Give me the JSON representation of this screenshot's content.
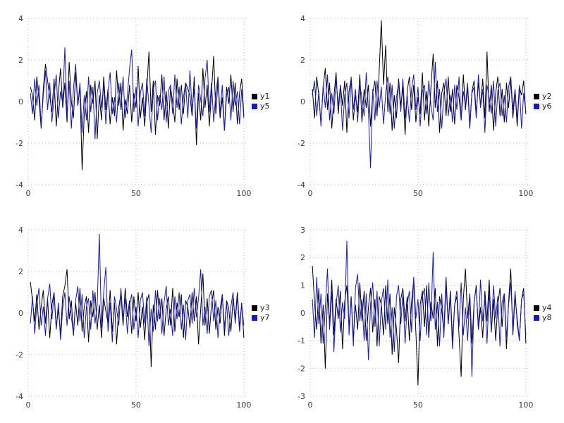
{
  "page": {
    "background": "#ffffff",
    "grid_color": "#c4c4c4",
    "tick_label_color": "#3a3a3a"
  },
  "chart_data": [
    {
      "type": "line",
      "title": "",
      "xlabel": "",
      "ylabel": "",
      "xlim": [
        0,
        102
      ],
      "ylim": [
        -4,
        4
      ],
      "xticks": [
        0,
        50,
        100
      ],
      "yticks": [
        -4,
        -2,
        0,
        2,
        4
      ],
      "grid": true,
      "legend_position": "right-center",
      "series": [
        {
          "name": "y1",
          "color": "#000000",
          "values": [
            0.7,
            0.3,
            -0.9,
            1.2,
            0.1,
            -1.3,
            0.6,
            1.8,
            1.0,
            0.2,
            -0.5,
            1.1,
            -1.2,
            0.4,
            1.6,
            -0.3,
            0.9,
            -1.0,
            1.9,
            0.0,
            -0.8,
            1.4,
            -0.2,
            0.7,
            -3.3,
            -0.6,
            0.5,
            -1.5,
            0.8,
            -0.1,
            1.0,
            -1.8,
            0.3,
            -0.9,
            1.2,
            -0.4,
            0.6,
            -1.1,
            0.2,
            -0.7,
            1.5,
            -0.2,
            0.9,
            -1.4,
            0.1,
            -0.6,
            0.8,
            -1.0,
            0.4,
            -0.3,
            1.7,
            -0.8,
            0.2,
            -1.2,
            0.6,
            2.4,
            -0.5,
            1.0,
            -1.6,
            0.3,
            -0.2,
            1.3,
            -0.9,
            0.5,
            -1.3,
            0.7,
            0.0,
            -1.0,
            1.1,
            -0.4,
            0.8,
            -0.6,
            0.9,
            0.6,
            0.3,
            -0.7,
            1.2,
            -2.1,
            0.4,
            -0.9,
            1.6,
            -0.3,
            0.8,
            -1.2,
            0.5,
            2.2,
            -0.6,
            1.0,
            -0.8,
            0.2,
            -1.4,
            0.7,
            -0.1,
            1.3,
            -0.5,
            0.9,
            -1.1,
            0.4,
            1.1,
            -0.7
          ]
        },
        {
          "name": "y5",
          "color": "#1515d6",
          "values": [
            0.4,
            -0.6,
            1.1,
            -0.2,
            0.8,
            -1.2,
            0.3,
            1.5,
            -0.4,
            0.9,
            -1.0,
            0.2,
            1.3,
            -0.8,
            0.5,
            -0.1,
            2.6,
            -0.7,
            1.0,
            -1.3,
            0.6,
            1.8,
            -0.2,
            0.9,
            -1.5,
            0.3,
            -0.9,
            1.2,
            -0.5,
            0.7,
            -1.8,
            0.4,
            1.0,
            -0.3,
            0.8,
            -1.1,
            0.5,
            1.4,
            -0.6,
            0.2,
            -1.0,
            0.9,
            -0.4,
            1.2,
            -0.8,
            0.3,
            1.6,
            2.5,
            -0.5,
            0.7,
            -1.2,
            0.4,
            0.9,
            -0.7,
            1.1,
            -0.2,
            -1.5,
            0.6,
            1.0,
            -0.9,
            0.3,
            -0.4,
            1.2,
            -1.0,
            0.5,
            0.8,
            -0.6,
            1.3,
            -0.3,
            0.7,
            -1.1,
            0.2,
            0.9,
            -0.8,
            1.5,
            -0.4,
            0.6,
            -1.3,
            0.8,
            0.1,
            -0.7,
            1.1,
            2.0,
            -0.5,
            0.9,
            -1.0,
            0.4,
            1.2,
            -0.6,
            0.8,
            -1.4,
            0.3,
            0.7,
            -0.9,
            1.0,
            -0.2,
            0.5,
            -1.1,
            0.6,
            -0.8
          ]
        }
      ]
    },
    {
      "type": "line",
      "title": "",
      "xlabel": "",
      "ylabel": "",
      "xlim": [
        0,
        102
      ],
      "ylim": [
        -4,
        4
      ],
      "xticks": [
        0,
        50,
        100
      ],
      "yticks": [
        -4,
        -2,
        0,
        2,
        4
      ],
      "grid": true,
      "legend_position": "right-center",
      "series": [
        {
          "name": "y2",
          "color": "#000000",
          "values": [
            0.6,
            -0.8,
            1.2,
            0.3,
            -1.1,
            0.7,
            1.6,
            -0.4,
            0.9,
            -1.3,
            0.2,
            1.4,
            -0.6,
            0.8,
            -0.2,
            1.0,
            -1.5,
            0.5,
            1.1,
            -0.9,
            0.3,
            -0.5,
            1.3,
            -1.0,
            0.6,
            -0.3,
            0.8,
            -1.2,
            0.4,
            1.0,
            -0.7,
            1.5,
            3.9,
            0.8,
            2.7,
            -0.5,
            0.9,
            -1.4,
            0.3,
            -0.8,
            1.1,
            -0.2,
            0.7,
            -1.6,
            0.5,
            1.2,
            -0.4,
            0.8,
            -1.0,
            0.2,
            -0.6,
            1.4,
            -0.9,
            0.5,
            -1.2,
            0.7,
            2.3,
            -0.3,
            1.0,
            -1.5,
            0.4,
            0.9,
            -0.7,
            1.2,
            -0.5,
            0.6,
            -1.1,
            0.8,
            0.2,
            -0.9,
            1.3,
            -0.4,
            0.7,
            -1.3,
            0.5,
            1.0,
            -0.6,
            0.9,
            -0.2,
            1.1,
            -0.8,
            2.4,
            -0.5,
            0.8,
            -1.4,
            0.4,
            1.2,
            -0.7,
            0.6,
            -1.0,
            0.9,
            -0.3,
            1.1,
            -0.8,
            0.5,
            -1.2,
            0.7,
            0.3,
            1.0,
            -0.6
          ]
        },
        {
          "name": "y6",
          "color": "#1515d6",
          "values": [
            0.3,
            1.0,
            -0.7,
            0.5,
            -1.2,
            0.8,
            -0.3,
            1.3,
            -0.9,
            0.4,
            -0.6,
            1.1,
            -0.2,
            0.7,
            -1.4,
            0.3,
            0.9,
            -0.8,
            1.2,
            -0.4,
            0.6,
            -1.0,
            0.8,
            0.2,
            -0.7,
            1.4,
            -0.5,
            -3.2,
            0.6,
            -0.9,
            1.0,
            -0.3,
            0.7,
            -1.1,
            0.4,
            1.2,
            -0.6,
            0.8,
            -1.3,
            0.2,
            0.9,
            -0.5,
            1.1,
            -0.8,
            0.3,
            -1.0,
            0.6,
            1.3,
            -0.4,
            0.7,
            -1.2,
            0.5,
            0.8,
            -0.6,
            1.0,
            -0.2,
            -0.9,
            1.9,
            -0.5,
            0.6,
            -1.3,
            0.4,
            1.1,
            -0.7,
            0.3,
            -1.0,
            0.8,
            -0.4,
            1.2,
            -0.9,
            0.5,
            -0.2,
            0.9,
            -1.1,
            0.4,
            0.7,
            -0.8,
            1.3,
            -0.3,
            0.6,
            -1.5,
            0.8,
            0.2,
            -0.6,
            1.0,
            -1.2,
            0.5,
            0.9,
            -0.7,
            0.3,
            -1.0,
            0.7,
            1.2,
            -0.4,
            0.6,
            -0.9,
            0.8,
            -1.3,
            0.4,
            -0.5
          ]
        }
      ]
    },
    {
      "type": "line",
      "title": "",
      "xlabel": "",
      "ylabel": "",
      "xlim": [
        0,
        102
      ],
      "ylim": [
        -4,
        4
      ],
      "xticks": [
        0,
        50,
        100
      ],
      "yticks": [
        -4,
        -2,
        0,
        2,
        4
      ],
      "grid": true,
      "legend_position": "right-center",
      "series": [
        {
          "name": "y3",
          "color": "#000000",
          "values": [
            1.5,
            0.6,
            -0.4,
            0.9,
            -0.8,
            0.3,
            1.1,
            -0.5,
            0.7,
            -1.2,
            0.4,
            1.0,
            -0.7,
            0.2,
            -1.0,
            0.8,
            1.3,
            2.1,
            -0.3,
            0.6,
            -1.1,
            0.5,
            -0.6,
            1.2,
            -0.9,
            0.3,
            0.8,
            -1.4,
            0.6,
            -0.2,
            1.0,
            -0.8,
            0.4,
            -1.2,
            0.7,
            0.1,
            -0.5,
            1.1,
            -0.9,
            0.5,
            -1.5,
            0.3,
            0.9,
            -0.6,
            1.2,
            -0.2,
            0.6,
            -1.0,
            0.8,
            -0.4,
            1.0,
            -0.7,
            0.3,
            -1.3,
            0.5,
            0.9,
            -2.6,
            0.4,
            -0.8,
            1.1,
            -0.3,
            0.7,
            -1.1,
            0.2,
            0.8,
            -0.6,
            1.2,
            -0.9,
            0.5,
            -0.2,
            0.9,
            -1.2,
            0.6,
            0.3,
            -0.7,
            1.0,
            -0.4,
            0.8,
            -1.5,
            0.2,
            1.9,
            -0.6,
            0.7,
            -1.0,
            0.4,
            1.1,
            -0.8,
            0.3,
            -0.5,
            0.9,
            -1.1,
            0.6,
            0.2,
            -0.9,
            0.7,
            -0.3,
            1.0,
            -0.7,
            0.5,
            -1.2
          ]
        },
        {
          "name": "y7",
          "color": "#1515d6",
          "values": [
            -0.5,
            0.8,
            -1.0,
            0.4,
            1.2,
            -0.6,
            0.3,
            -1.1,
            0.7,
            1.4,
            -0.3,
            0.9,
            -0.8,
            0.5,
            -1.3,
            0.2,
            1.0,
            -0.6,
            0.8,
            -0.2,
            -1.0,
            0.6,
            1.3,
            -0.4,
            0.9,
            -1.2,
            0.3,
            0.7,
            -0.8,
            1.1,
            -0.5,
            0.4,
            3.8,
            -0.7,
            1.0,
            2.2,
            -0.9,
            0.5,
            -1.4,
            0.8,
            0.2,
            -0.6,
            1.2,
            -0.3,
            0.7,
            -1.0,
            0.4,
            0.9,
            -0.8,
            0.3,
            -1.2,
            0.6,
            1.0,
            -0.5,
            0.8,
            -1.6,
            0.2,
            -0.9,
            1.1,
            -0.4,
            0.7,
            -1.0,
            0.5,
            1.3,
            -0.6,
            0.2,
            -1.1,
            0.8,
            -0.3,
            1.0,
            -0.8,
            0.4,
            -1.3,
            0.6,
            0.9,
            -0.5,
            1.2,
            -0.2,
            0.7,
            2.1,
            -0.6,
            0.3,
            -1.0,
            0.8,
            1.1,
            -0.4,
            0.6,
            -1.2,
            0.2,
            0.9,
            -0.7,
            0.5,
            -1.1,
            0.3,
            1.0,
            -0.5,
            0.8,
            -0.9,
            0.4,
            -0.6
          ]
        }
      ]
    },
    {
      "type": "line",
      "title": "",
      "xlabel": "",
      "ylabel": "",
      "xlim": [
        0,
        102
      ],
      "ylim": [
        -3,
        3
      ],
      "xticks": [
        0,
        50,
        100
      ],
      "yticks": [
        -3,
        -2,
        -1,
        0,
        1,
        2,
        3
      ],
      "grid": true,
      "legend_position": "right-center",
      "series": [
        {
          "name": "y4",
          "color": "#000000",
          "values": [
            1.7,
            0.4,
            -0.6,
            0.9,
            -1.1,
            0.3,
            -2.0,
            0.7,
            -0.4,
            1.2,
            -0.8,
            0.5,
            -0.2,
            0.8,
            -1.3,
            0.4,
            1.0,
            -0.5,
            0.6,
            -0.9,
            0.3,
            -0.6,
            1.1,
            -0.3,
            0.8,
            -1.0,
            0.2,
            0.9,
            -0.7,
            0.5,
            -1.2,
            0.6,
            0.3,
            -0.8,
            1.0,
            -0.4,
            0.7,
            -1.5,
            0.2,
            -0.6,
            -1.8,
            0.5,
            0.9,
            -0.3,
            0.6,
            -1.0,
            0.4,
            1.2,
            -0.7,
            -2.6,
            0.3,
            0.8,
            -0.5,
            1.0,
            -0.9,
            0.4,
            -0.2,
            0.9,
            -1.2,
            0.6,
            0.1,
            -0.7,
            1.3,
            -0.4,
            0.8,
            -1.0,
            0.3,
            0.6,
            -0.8,
            -2.3,
            0.5,
            1.6,
            -0.2,
            0.7,
            -1.1,
            0.4,
            1.0,
            -0.6,
            0.2,
            -0.9,
            0.8,
            -0.3,
            1.2,
            -0.7,
            0.5,
            -1.0,
            0.3,
            0.9,
            -0.5,
            0.7,
            -1.3,
            0.4,
            1.6,
            -0.8,
            0.6,
            -0.2,
            -1.0,
            0.5,
            0.9,
            -1.1
          ]
        },
        {
          "name": "y8",
          "color": "#1515d6",
          "values": [
            0.5,
            -0.9,
            1.3,
            -0.4,
            0.7,
            -1.1,
            0.2,
            1.6,
            -0.6,
            0.8,
            -1.4,
            0.3,
            1.0,
            -0.7,
            0.4,
            -0.2,
            2.6,
            -0.8,
            0.6,
            -1.2,
            0.9,
            1.4,
            -0.3,
            0.5,
            -1.0,
            0.7,
            -1.7,
            0.3,
            1.1,
            -0.5,
            0.8,
            -1.2,
            0.4,
            0.9,
            -0.6,
            1.2,
            -0.9,
            0.2,
            -1.4,
            0.6,
            1.0,
            -0.4,
            0.7,
            -1.1,
            0.3,
            0.8,
            -0.7,
            1.3,
            -0.2,
            0.5,
            -1.0,
            0.6,
            0.9,
            -0.8,
            1.1,
            -0.3,
            2.2,
            -0.6,
            0.4,
            -1.2,
            0.7,
            -0.9,
            1.0,
            -0.4,
            0.6,
            -1.3,
            0.3,
            0.8,
            -0.5,
            1.1,
            -0.8,
            0.2,
            -1.0,
            0.7,
            -2.3,
            0.4,
            0.9,
            -0.6,
            1.2,
            -0.3,
            0.5,
            -1.1,
            0.8,
            -0.7,
            1.0,
            -0.2,
            0.6,
            -1.2,
            0.4,
            0.7,
            -0.9,
            0.3,
            1.1,
            -0.6,
            0.8,
            -0.4,
            -1.0,
            0.5,
            0.7,
            -0.8
          ]
        }
      ]
    }
  ]
}
